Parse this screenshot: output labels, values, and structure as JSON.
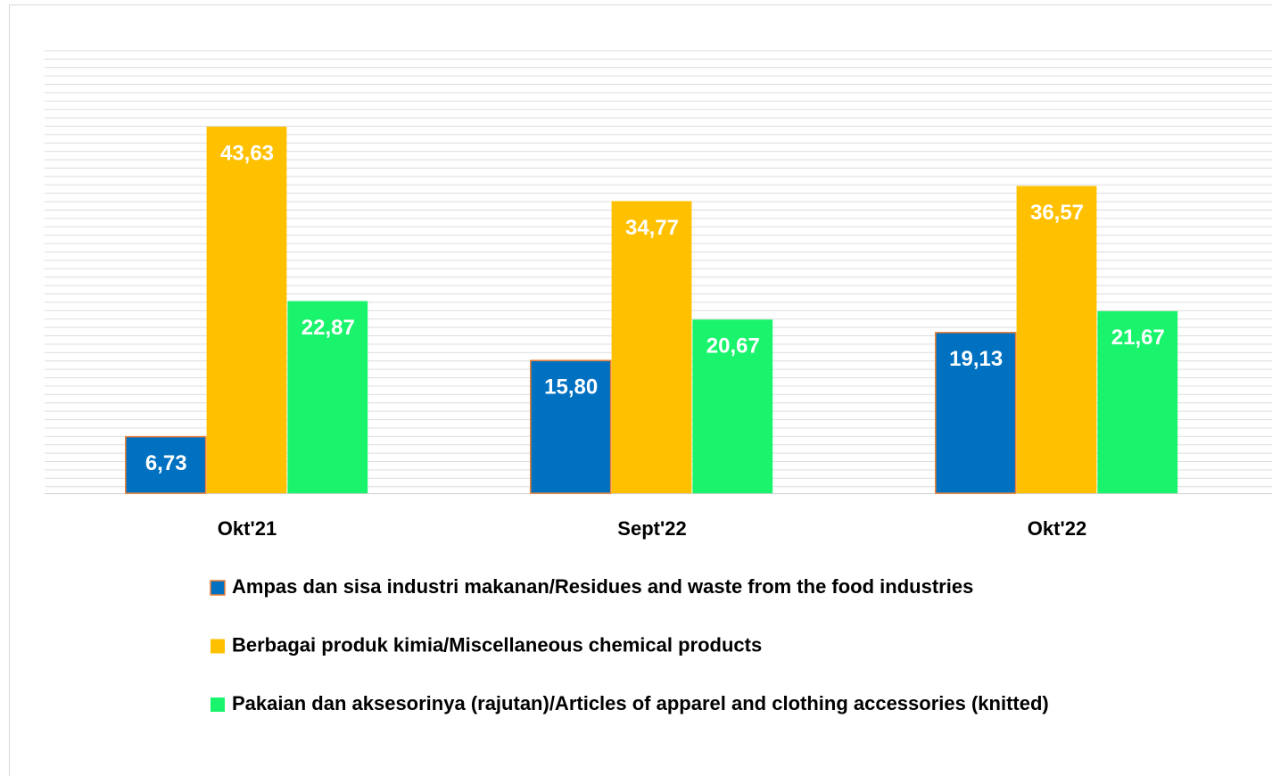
{
  "chart_data": {
    "type": "bar",
    "categories": [
      "Okt'21",
      "Sept'22",
      "Okt'22"
    ],
    "series": [
      {
        "name": "Ampas dan sisa industri makanan/Residues and waste from the food industries",
        "color": "#0070c0",
        "values": [
          6.73,
          15.8,
          19.13
        ],
        "value_labels": [
          "6,73",
          "15,80",
          "19,13"
        ]
      },
      {
        "name": "Berbagai produk kimia/Miscellaneous chemical products",
        "color": "#ffc000",
        "values": [
          43.63,
          34.77,
          36.57
        ],
        "value_labels": [
          "43,63",
          "34,77",
          "36,57"
        ]
      },
      {
        "name": "Pakaian dan aksesorinya (rajutan)/Articles of apparel and clothing accessories (knitted)",
        "color": "#19f46c",
        "values": [
          22.87,
          20.67,
          21.67
        ],
        "value_labels": [
          "22,87",
          "20,67",
          "21,67"
        ]
      }
    ],
    "ylim": [
      0,
      53.4
    ]
  }
}
